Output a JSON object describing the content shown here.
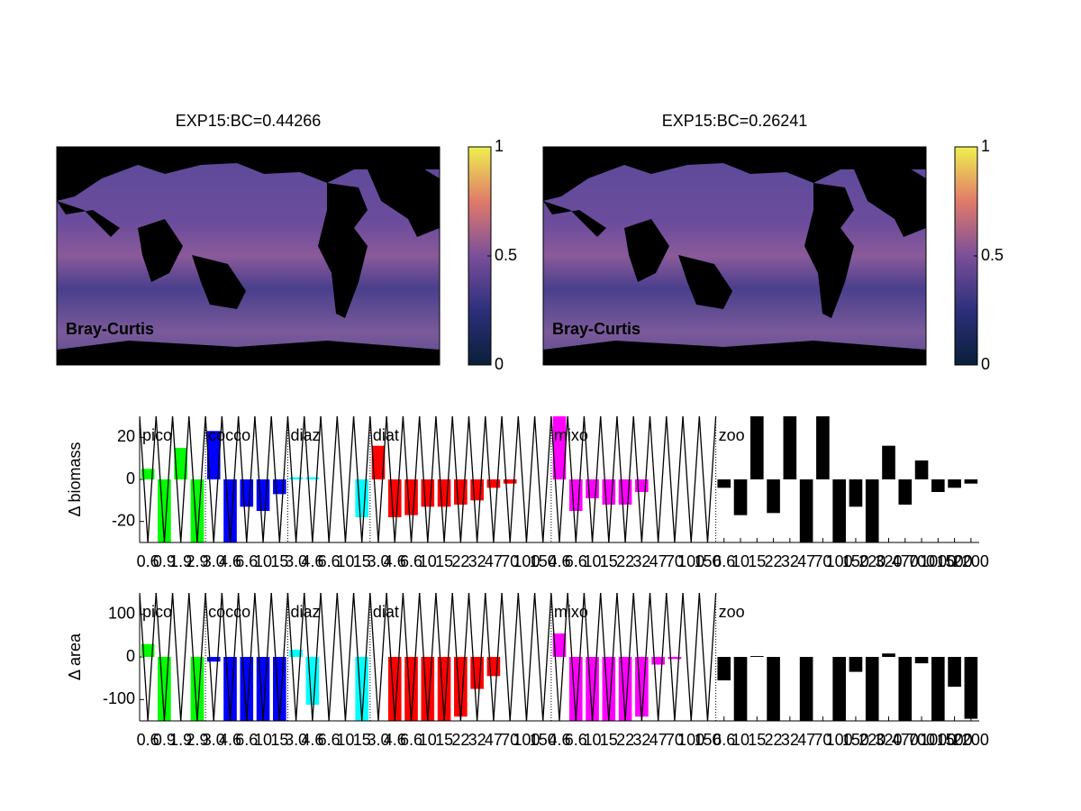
{
  "chart_data": [
    {
      "type": "map",
      "title": "EXP15:BC=0.44266",
      "annotation": "Bray-Curtis",
      "clim": [
        0,
        1
      ],
      "cticks": [
        0,
        0.5,
        1
      ]
    },
    {
      "type": "map",
      "title": "EXP15:BC=0.26241",
      "annotation": "Bray-Curtis",
      "clim": [
        0,
        1
      ],
      "cticks": [
        0,
        0.5,
        1
      ]
    },
    {
      "type": "groupbar",
      "ylabel": "Δ biomass",
      "ylim": [
        -30,
        30
      ],
      "yticks": [
        -20,
        0,
        20
      ],
      "groups": [
        {
          "name": "pico",
          "color": "#00ff00",
          "categories": [
            "0.6",
            "0.9",
            "1.9",
            "2.9"
          ],
          "values": [
            5,
            -30,
            15,
            -30
          ]
        },
        {
          "name": "cocco",
          "color": "#0000ff",
          "categories": [
            "3.0",
            "4.6",
            "6.6",
            "10",
            "15"
          ],
          "values": [
            23,
            -30,
            -13,
            -15,
            -7
          ]
        },
        {
          "name": "diaz",
          "color": "#00ffff",
          "categories": [
            "3.0",
            "4.6",
            "6.6",
            "10",
            "15"
          ],
          "values": [
            1,
            1,
            0,
            0,
            -18
          ]
        },
        {
          "name": "diat",
          "color": "#ff0000",
          "categories": [
            "3.0",
            "4.6",
            "6.6",
            "10",
            "15",
            "22",
            "32",
            "47",
            "70",
            "100",
            "150"
          ],
          "values": [
            16,
            -18,
            -17,
            -13,
            -13,
            -12,
            -10,
            -4,
            -2,
            0,
            0
          ]
        },
        {
          "name": "mixo",
          "color": "#ff00ff",
          "categories": [
            "4.6",
            "6.6",
            "10",
            "15",
            "22",
            "32",
            "47",
            "70",
            "100",
            "150"
          ],
          "values": [
            30,
            -15,
            -9,
            -12,
            -12,
            -6,
            0,
            0,
            0,
            0
          ]
        },
        {
          "name": "zoo",
          "color": "#000000",
          "categories": [
            "6.6",
            "10",
            "15",
            "22",
            "32",
            "47",
            "70",
            "100",
            "150",
            "220",
            "320",
            "470",
            "700",
            "1000",
            "1500",
            "2200"
          ],
          "values": [
            -4,
            -17,
            30,
            -16,
            30,
            -30,
            30,
            -30,
            -13,
            -30,
            16,
            -12,
            9,
            -6,
            -4,
            -2
          ]
        }
      ]
    },
    {
      "type": "groupbar",
      "ylabel": "Δ area",
      "ylim": [
        -150,
        150
      ],
      "yticks": [
        -100,
        0,
        100
      ],
      "groups": [
        {
          "name": "pico",
          "color": "#00ff00",
          "categories": [
            "0.6",
            "0.9",
            "1.9",
            "2.9"
          ],
          "values": [
            30,
            -150,
            0,
            -150
          ]
        },
        {
          "name": "cocco",
          "color": "#0000ff",
          "categories": [
            "3.0",
            "4.6",
            "6.6",
            "10",
            "15"
          ],
          "values": [
            -11,
            -150,
            -150,
            -150,
            -150
          ]
        },
        {
          "name": "diaz",
          "color": "#00ffff",
          "categories": [
            "3.0",
            "4.6",
            "6.6",
            "10",
            "15"
          ],
          "values": [
            17,
            -112,
            0,
            0,
            -150
          ]
        },
        {
          "name": "diat",
          "color": "#ff0000",
          "categories": [
            "3.0",
            "4.6",
            "6.6",
            "10",
            "15",
            "22",
            "32",
            "47",
            "70",
            "100",
            "150"
          ],
          "values": [
            0,
            -150,
            -150,
            -150,
            -150,
            -140,
            -75,
            -45,
            0,
            0,
            0
          ]
        },
        {
          "name": "mixo",
          "color": "#ff00ff",
          "categories": [
            "4.6",
            "6.6",
            "10",
            "15",
            "22",
            "32",
            "47",
            "70",
            "100",
            "150"
          ],
          "values": [
            55,
            -150,
            -150,
            -150,
            -150,
            -140,
            -18,
            -5,
            0,
            0
          ]
        },
        {
          "name": "zoo",
          "color": "#000000",
          "categories": [
            "6.6",
            "10",
            "15",
            "22",
            "32",
            "47",
            "70",
            "100",
            "150",
            "220",
            "320",
            "470",
            "700",
            "1000",
            "1500",
            "2200"
          ],
          "values": [
            -55,
            -150,
            2,
            -150,
            0,
            -150,
            0,
            -150,
            -35,
            -150,
            8,
            -150,
            -15,
            -150,
            -70,
            -145
          ]
        }
      ]
    }
  ]
}
